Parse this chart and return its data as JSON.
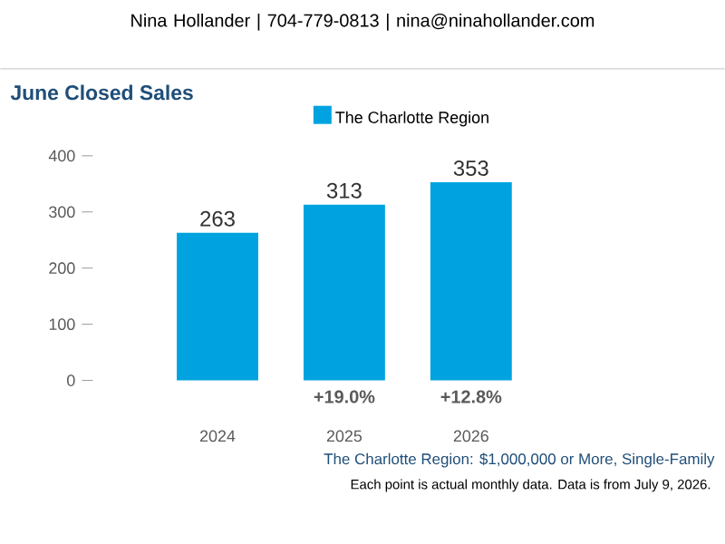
{
  "chart_data": {
    "type": "bar",
    "title": "June Closed Sales",
    "subtitle": "The Charlotte Region: $1,000,000 or More, Single-Family",
    "categories": [
      "2024",
      "2025",
      "2026"
    ],
    "series": [
      {
        "name": "The Charlotte Region",
        "color": "#00a3e0",
        "values": [
          263,
          313,
          353
        ]
      }
    ],
    "ylim": [
      0,
      400
    ],
    "yticks": [
      0,
      100,
      200,
      300,
      400
    ],
    "data_labels": true,
    "legend": "top",
    "grid": false,
    "annotations": [
      "Nina Hollander | 704-779-0813 | nina@ninahollander.com",
      "+19.0%",
      "+12.8%",
      "Each point is actual monthly data. Data is from July 9, 2026."
    ]
  }
}
